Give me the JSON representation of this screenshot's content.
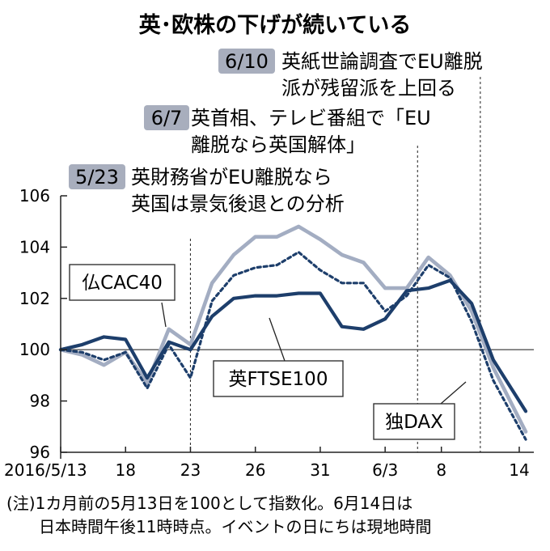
{
  "chart_data": {
    "type": "line",
    "title": "英･欧株の下げが続いている",
    "xlabel": "",
    "ylabel": "",
    "ylim": [
      96,
      106
    ],
    "yticks": [
      96,
      98,
      100,
      102,
      104,
      106
    ],
    "baseline": 100,
    "x": [
      1,
      2,
      3,
      4,
      5,
      6,
      7,
      8,
      9,
      10,
      11,
      12,
      13,
      14,
      15,
      16,
      17,
      18,
      19,
      20,
      21,
      22
    ],
    "x_dates": [
      "5/13",
      "5/16",
      "5/17",
      "5/18",
      "5/19",
      "5/20",
      "5/23",
      "5/24",
      "5/25",
      "5/26",
      "5/27",
      "5/30",
      "5/31",
      "6/1",
      "6/2",
      "6/3",
      "6/6",
      "6/7",
      "6/8",
      "6/9",
      "6/10",
      "6/13/14"
    ],
    "xticks": [
      {
        "x": 1,
        "label": "2016/5/13"
      },
      {
        "x": 4,
        "label": "18"
      },
      {
        "x": 7,
        "label": "23"
      },
      {
        "x": 10,
        "label": "26"
      },
      {
        "x": 13,
        "label": "31"
      },
      {
        "x": 16,
        "label": "6/3"
      },
      {
        "x": 18.6,
        "label": "8"
      },
      {
        "x": 22.2,
        "label": "14"
      }
    ],
    "series": [
      {
        "name": "英FTSE100",
        "x": [
          1,
          2,
          3,
          4,
          5,
          6,
          7,
          8,
          9,
          10,
          11,
          12,
          13,
          14,
          15,
          16,
          17,
          18,
          19,
          20,
          21,
          22.5
        ],
        "values": [
          100.0,
          100.2,
          100.5,
          100.4,
          98.9,
          100.3,
          100.0,
          101.3,
          102.0,
          102.1,
          102.1,
          102.2,
          102.2,
          100.9,
          100.8,
          101.2,
          102.3,
          102.4,
          102.7,
          101.8,
          99.6,
          97.6
        ]
      },
      {
        "name": "独DAX",
        "x": [
          1,
          2,
          3,
          4,
          5,
          6,
          7,
          8,
          9,
          10,
          11,
          12,
          13,
          14,
          15,
          16,
          17,
          18,
          19,
          20,
          21,
          22.5
        ],
        "values": [
          100.0,
          99.8,
          99.4,
          99.9,
          98.7,
          100.8,
          100.2,
          102.6,
          103.7,
          104.4,
          104.4,
          104.8,
          104.3,
          103.7,
          103.4,
          102.4,
          102.4,
          103.6,
          102.9,
          101.5,
          99.3,
          96.8
        ]
      },
      {
        "name": "仏CAC40",
        "x": [
          1,
          2,
          3,
          4,
          5,
          6,
          7,
          8,
          9,
          10,
          11,
          12,
          13,
          14,
          15,
          16,
          17,
          18,
          19,
          20,
          21,
          22.5
        ],
        "values": [
          100.0,
          99.9,
          99.6,
          99.9,
          98.5,
          100.2,
          98.9,
          101.9,
          102.9,
          103.2,
          103.3,
          103.8,
          103.1,
          102.6,
          102.6,
          101.5,
          102.1,
          103.3,
          102.8,
          101.1,
          98.8,
          96.5
        ]
      }
    ],
    "events": [
      {
        "x": 7,
        "date": "5/23",
        "text": [
          "英財務省がEU離脱なら",
          "英国は景気後退との分析"
        ]
      },
      {
        "x": 17.5,
        "date": "6/7",
        "text": [
          "英首相、テレビ番組で「EU",
          "離脱なら英国解体」"
        ]
      },
      {
        "x": 20.4,
        "date": "6/10",
        "text": [
          "英紙世論調査でEU離脱",
          "派が残留派を上回る"
        ]
      }
    ],
    "note": [
      "(注)1カ月前の5月13日を100として指数化。6月14日は",
      "日本時間午後11時時点。イベントの日にちは現地時間"
    ]
  },
  "colors": {
    "ftse": "#1d3e6b",
    "dax": "#a3adc2",
    "cac": "#1d3e6b",
    "badge": "#a8aebd",
    "axis": "#222222",
    "grid": "#555555"
  }
}
